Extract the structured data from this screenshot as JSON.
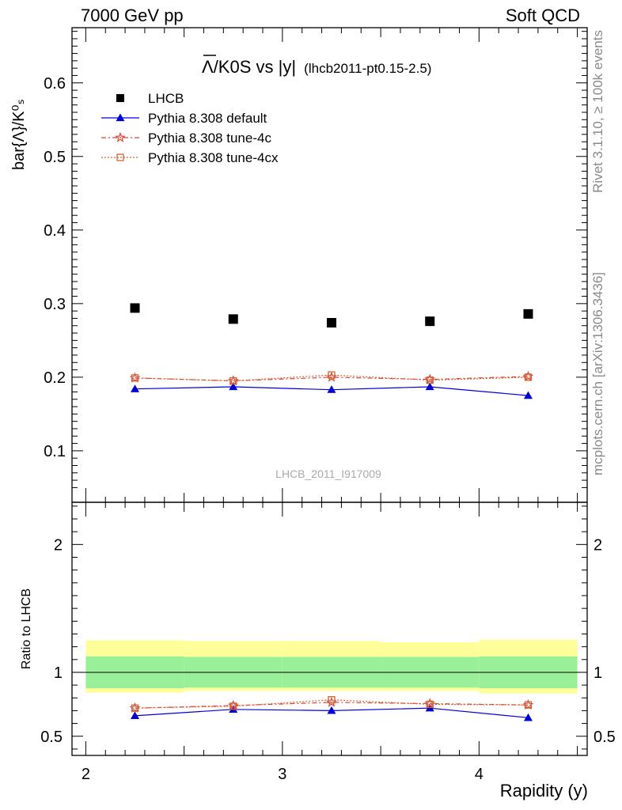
{
  "header": {
    "left": "7000 GeV pp",
    "right": "Soft QCD"
  },
  "side": {
    "rivet": "Rivet 3.1.10, ≥ 100k events",
    "mcplots": "mcplots.cern.ch [arXiv:1306.3436]"
  },
  "title": {
    "main": "Λ/K0S vs |y|",
    "sub": "(lhcb2011-pt0.15-2.5)"
  },
  "watermark": "LHCB_2011_I917009",
  "chart_data": [
    {
      "type": "scatter",
      "panel": "main",
      "ylabel": "bar{Λ}/K⁰ₛ",
      "xlim": [
        1.93,
        4.55
      ],
      "ylim": [
        0.03,
        0.675
      ],
      "yticks": [
        0.1,
        0.2,
        0.3,
        0.4,
        0.5,
        0.6
      ],
      "ytick_labels": [
        "0.1",
        "0.2",
        "0.3",
        "0.4",
        "0.5",
        "0.6"
      ],
      "x": [
        2.25,
        2.75,
        3.25,
        3.75,
        4.25
      ],
      "series": [
        {
          "name": "LHCB",
          "values": [
            0.294,
            0.279,
            0.274,
            0.276,
            0.286
          ],
          "color": "#000000",
          "marker": "square"
        },
        {
          "name": "Pythia 8.308 default",
          "values": [
            0.184,
            0.187,
            0.183,
            0.187,
            0.175
          ],
          "color": "#0000dd",
          "marker": "triangle"
        },
        {
          "name": "Pythia 8.308 tune-4c",
          "values": [
            0.199,
            0.195,
            0.2,
            0.197,
            0.201
          ],
          "color": "#dd4433",
          "marker": "star"
        },
        {
          "name": "Pythia 8.308 tune-4cx",
          "values": [
            0.199,
            0.195,
            0.203,
            0.196,
            0.2
          ],
          "color": "#cc6633",
          "marker": "open-square"
        }
      ],
      "legend_placement": "top-left"
    },
    {
      "type": "line",
      "panel": "ratio",
      "xlabel": "Rapidity (y)",
      "ylabel": "Ratio to LHCB",
      "xlim": [
        1.93,
        4.55
      ],
      "ylim": [
        0.35,
        2.33
      ],
      "xticks": [
        2,
        3,
        4
      ],
      "xtick_labels": [
        "2",
        "3",
        "4"
      ],
      "yticks": [
        0.5,
        1,
        2
      ],
      "ytick_labels": [
        "0.5",
        "1",
        "2"
      ],
      "x": [
        2.25,
        2.75,
        3.25,
        3.75,
        4.25
      ],
      "bin_edges": [
        2.0,
        2.5,
        3.0,
        3.5,
        4.0,
        4.5
      ],
      "bands": {
        "stat_low": [
          0.875,
          0.88,
          0.88,
          0.88,
          0.875
        ],
        "stat_high": [
          1.125,
          1.12,
          1.12,
          1.12,
          1.125
        ],
        "total_low": [
          0.84,
          0.855,
          0.855,
          0.855,
          0.835
        ],
        "total_high": [
          1.25,
          1.245,
          1.245,
          1.235,
          1.255
        ],
        "stat_color": "#99f099",
        "total_color": "#ffff99"
      },
      "series": [
        {
          "name": "Pythia 8.308 default",
          "values": [
            0.66,
            0.71,
            0.7,
            0.72,
            0.645
          ],
          "color": "#0000dd",
          "marker": "triangle"
        },
        {
          "name": "Pythia 8.308 tune-4c",
          "values": [
            0.72,
            0.74,
            0.765,
            0.755,
            0.745
          ],
          "color": "#dd4433",
          "marker": "star"
        },
        {
          "name": "Pythia 8.308 tune-4cx",
          "values": [
            0.72,
            0.735,
            0.785,
            0.75,
            0.745
          ],
          "color": "#cc6633",
          "marker": "open-square"
        }
      ]
    }
  ]
}
